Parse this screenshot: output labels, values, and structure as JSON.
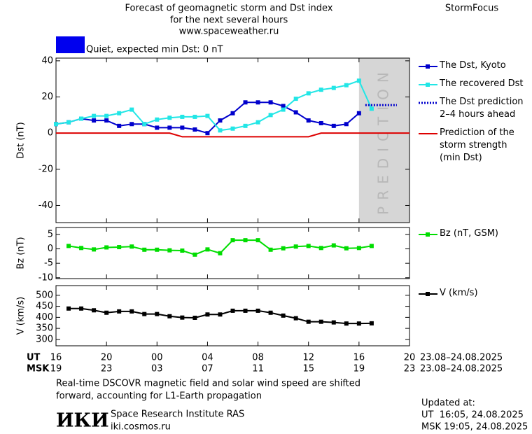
{
  "header": {
    "title_lines": [
      "Forecast of geomagnetic storm and Dst index",
      "for the next several hours",
      "www.spaceweather.ru"
    ],
    "brand": "StormFocus"
  },
  "status": {
    "text": "Quiet, expected min Dst: 0 nT",
    "color": "#0000ee"
  },
  "chart_data": [
    {
      "type": "line",
      "ylabel": "Dst (nT)",
      "xlim": [
        0,
        28
      ],
      "ylim": [
        -49.5,
        41.5
      ],
      "yticks": [
        -40,
        -20,
        0,
        20,
        40
      ],
      "prediction_label": "PREDICTION",
      "prediction_span": [
        24,
        28
      ],
      "series": [
        {
          "name": "The Dst, Kyoto",
          "color": "#0000cc",
          "markers": true,
          "dash": "solid",
          "x": [
            0,
            1,
            2,
            3,
            4,
            5,
            6,
            7,
            8,
            9,
            10,
            11,
            12,
            13,
            14,
            15,
            16,
            17,
            18,
            19,
            20,
            21,
            22,
            23,
            24
          ],
          "values": [
            5,
            6,
            8,
            7,
            7,
            4,
            5,
            5,
            3,
            3,
            3,
            2,
            0,
            7,
            11,
            17,
            17,
            17,
            15,
            11.5,
            7,
            5.5,
            4,
            5,
            11
          ]
        },
        {
          "name": "The recovered Dst",
          "color": "#22e6e6",
          "markers": true,
          "dash": "solid",
          "x": [
            0,
            1,
            2,
            3,
            4,
            5,
            6,
            7,
            8,
            9,
            10,
            11,
            12,
            13,
            14,
            15,
            16,
            17,
            18,
            19,
            20,
            21,
            22,
            23,
            24,
            25
          ],
          "values": [
            5,
            6,
            8,
            9.5,
            9.5,
            11,
            13,
            5,
            7.5,
            8.5,
            9,
            9,
            9.5,
            1.5,
            2.5,
            4,
            6,
            10,
            13,
            19,
            22,
            24,
            25,
            26.5,
            29,
            13.5
          ]
        },
        {
          "name": "The Dst prediction 2–4 hours ahead",
          "color": "#0000cc",
          "markers": false,
          "dash": "dotted",
          "x": [
            24.5,
            27
          ],
          "values": [
            15.5,
            15.5
          ]
        },
        {
          "name": "Prediction of the storm strength (min Dst)",
          "color": "#dd0000",
          "markers": false,
          "dash": "solid",
          "x": [
            0,
            9,
            10,
            20,
            21,
            28
          ],
          "values": [
            0,
            0,
            -2,
            -2,
            0,
            0
          ]
        }
      ]
    },
    {
      "type": "line",
      "ylabel": "Bz (nT)",
      "xlim": [
        0,
        28
      ],
      "ylim": [
        -10.3,
        7.4
      ],
      "yticks": [
        -10,
        -5,
        0,
        5
      ],
      "series": [
        {
          "name": "Bz (nT, GSM)",
          "color": "#00dd00",
          "markers": true,
          "dash": "solid",
          "x": [
            1,
            2,
            3,
            4,
            5,
            6,
            7,
            8,
            9,
            10,
            11,
            12,
            13,
            14,
            15,
            16,
            17,
            18,
            19,
            20,
            21,
            22,
            23,
            24,
            25
          ],
          "values": [
            1,
            0.3,
            -0.2,
            0.5,
            0.6,
            0.8,
            -0.3,
            -0.3,
            -0.5,
            -0.6,
            -2,
            -0.2,
            -1.5,
            3,
            3,
            3,
            -0.3,
            0.2,
            0.8,
            1,
            0.3,
            1.2,
            0.2,
            0.3,
            1
          ]
        }
      ]
    },
    {
      "type": "line",
      "ylabel": "V (km/s)",
      "xlim": [
        0,
        28
      ],
      "ylim": [
        271,
        544
      ],
      "yticks": [
        300,
        350,
        400,
        450,
        500
      ],
      "xlabel": "UT",
      "xlabel2": "MSK",
      "x_dates": "23.08–24.08.2025",
      "x2_dates": "23.08–24.08.2025",
      "xticks": [
        {
          "value": 0,
          "label": "16"
        },
        {
          "value": 4,
          "label": "20"
        },
        {
          "value": 8,
          "label": "00"
        },
        {
          "value": 12,
          "label": "04"
        },
        {
          "value": 16,
          "label": "08"
        },
        {
          "value": 20,
          "label": "12"
        },
        {
          "value": 24,
          "label": "16"
        },
        {
          "value": 28,
          "label": "20"
        }
      ],
      "xticks2": [
        {
          "value": 0,
          "label": "19"
        },
        {
          "value": 4,
          "label": "23"
        },
        {
          "value": 8,
          "label": "03"
        },
        {
          "value": 12,
          "label": "07"
        },
        {
          "value": 16,
          "label": "11"
        },
        {
          "value": 20,
          "label": "15"
        },
        {
          "value": 24,
          "label": "19"
        },
        {
          "value": 28,
          "label": "23"
        }
      ],
      "series": [
        {
          "name": "V (km/s)",
          "color": "#000000",
          "markers": true,
          "dash": "solid",
          "x": [
            1,
            2,
            3,
            4,
            5,
            6,
            7,
            8,
            9,
            10,
            11,
            12,
            13,
            14,
            15,
            16,
            17,
            18,
            19,
            20,
            21,
            22,
            23,
            24,
            25
          ],
          "values": [
            440,
            440,
            432,
            421,
            427,
            427,
            415,
            415,
            405,
            399,
            398,
            413,
            413,
            430,
            430,
            430,
            421,
            408,
            396,
            380,
            380,
            377,
            372,
            372,
            373
          ]
        }
      ]
    }
  ],
  "footer": {
    "note_lines": [
      "Real-time DSCOVR magnetic field and solar wind speed are shifted",
      "forward, accounting for L1-Earth propagation"
    ],
    "logo": "ИКИ",
    "institute": "Space Research Institute RAS",
    "site": "iki.cosmos.ru",
    "updated_label": "Updated at:",
    "updated_ut": "UT  16:05, 24.08.2025",
    "updated_msk": "MSK 19:05, 24.08.2025"
  }
}
